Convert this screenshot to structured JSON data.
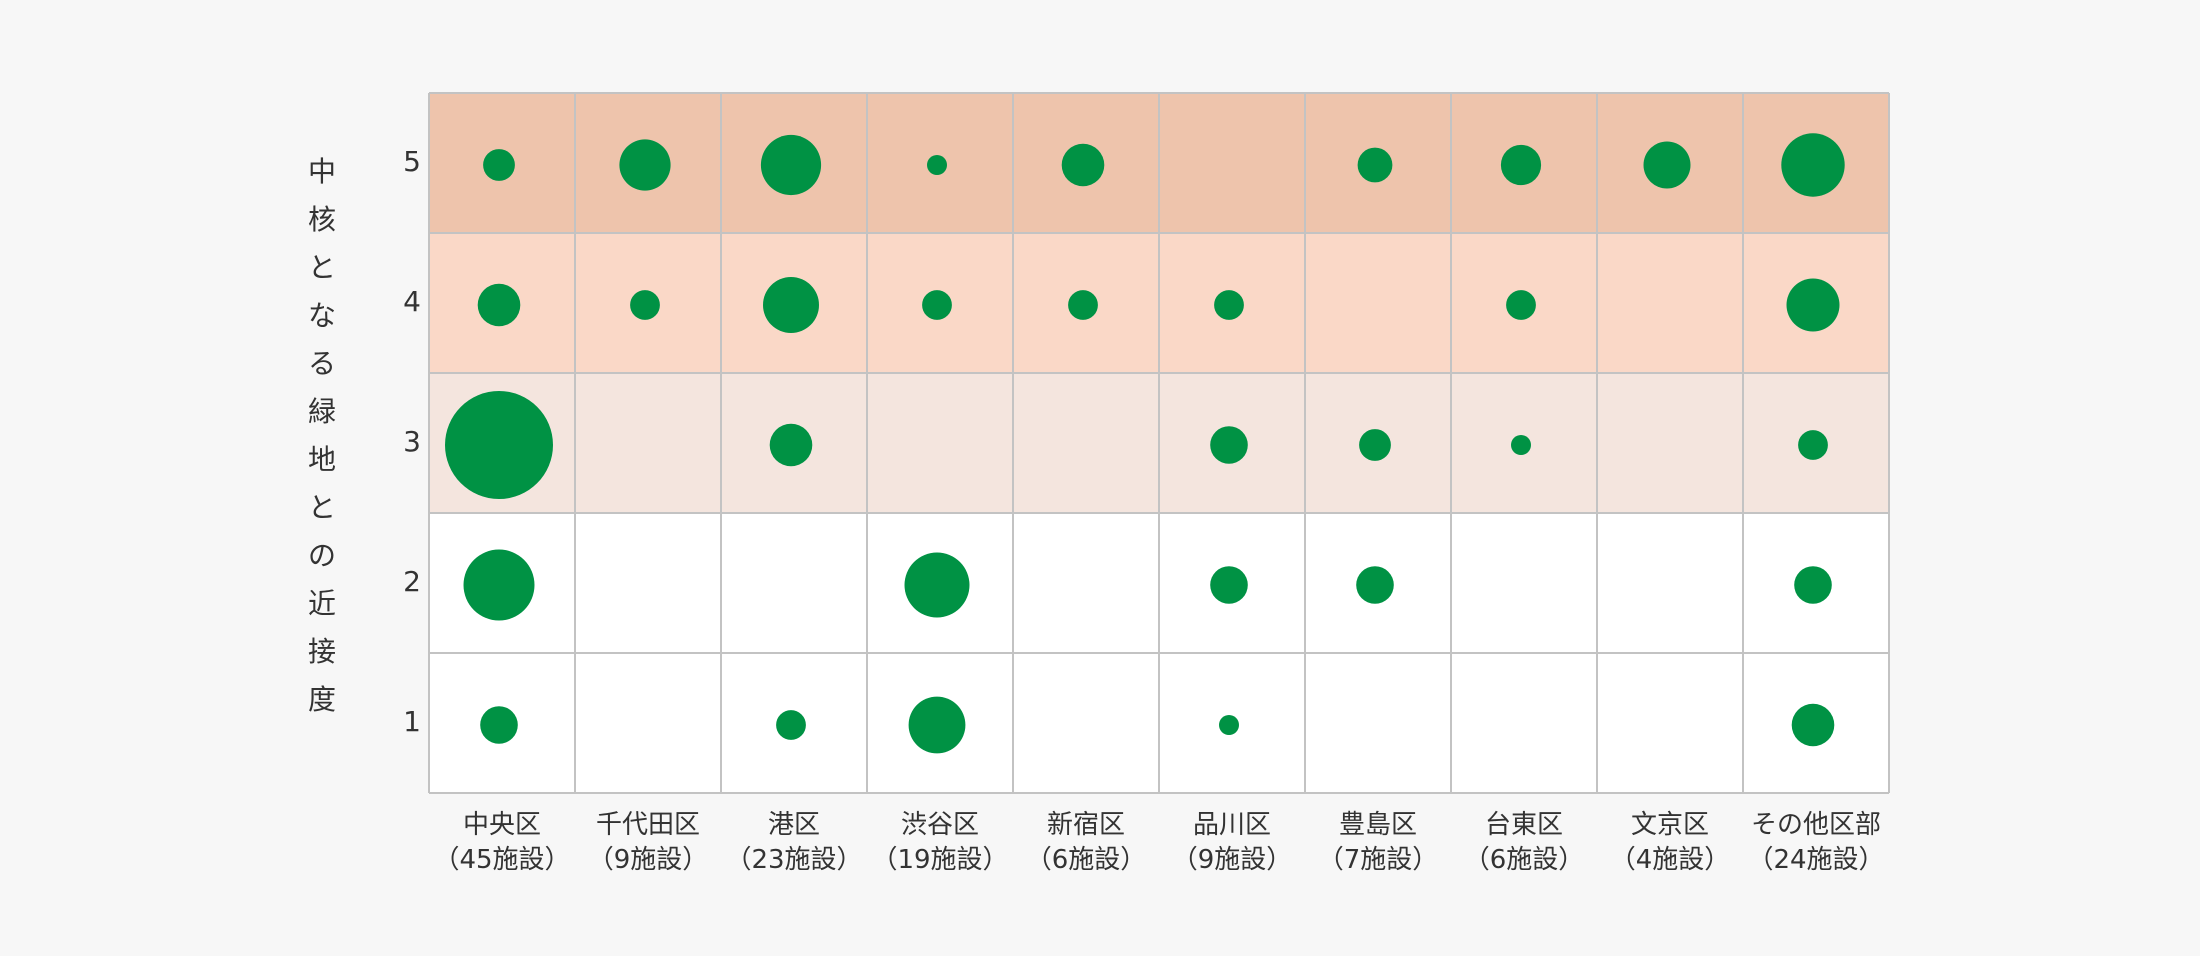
{
  "chart_data": {
    "type": "bubble-matrix",
    "ylabel": "中核となる緑地との近接度",
    "y_levels": [
      1,
      2,
      3,
      4,
      5
    ],
    "categories": [
      {
        "name": "中央区",
        "count": "（45施設）"
      },
      {
        "name": "千代田区",
        "count": "（9施設）"
      },
      {
        "name": "港区",
        "count": "（23施設）"
      },
      {
        "name": "渋谷区",
        "count": "（19施設）"
      },
      {
        "name": "新宿区",
        "count": "（6施設）"
      },
      {
        "name": "品川区",
        "count": "（9施設）"
      },
      {
        "name": "豊島区",
        "count": "（7施設）"
      },
      {
        "name": "台東区",
        "count": "（6施設）"
      },
      {
        "name": "文京区",
        "count": "（4施設）"
      },
      {
        "name": "その他区部",
        "count": "（24施設）"
      }
    ],
    "bubble_size_scale": 100,
    "values": {
      "5": [
        25,
        65,
        90,
        10,
        45,
        0,
        30,
        40,
        55,
        100
      ],
      "4": [
        45,
        22,
        78,
        22,
        22,
        22,
        0,
        22,
        0,
        70
      ],
      "3": [
        290,
        0,
        45,
        0,
        0,
        35,
        25,
        10,
        0,
        22
      ],
      "2": [
        125,
        0,
        0,
        105,
        0,
        35,
        35,
        0,
        0,
        35
      ],
      "1": [
        35,
        0,
        22,
        80,
        0,
        10,
        0,
        0,
        0,
        45
      ]
    },
    "row_colors": {
      "5": "#eec4ac",
      "4": "#fad8c7",
      "3": "#f4e5de",
      "2": "#ffffff",
      "1": "#ffffff"
    },
    "bubble_color": "#009244",
    "grid_color": "#c3c3c3",
    "background": "#f7f7f7"
  }
}
